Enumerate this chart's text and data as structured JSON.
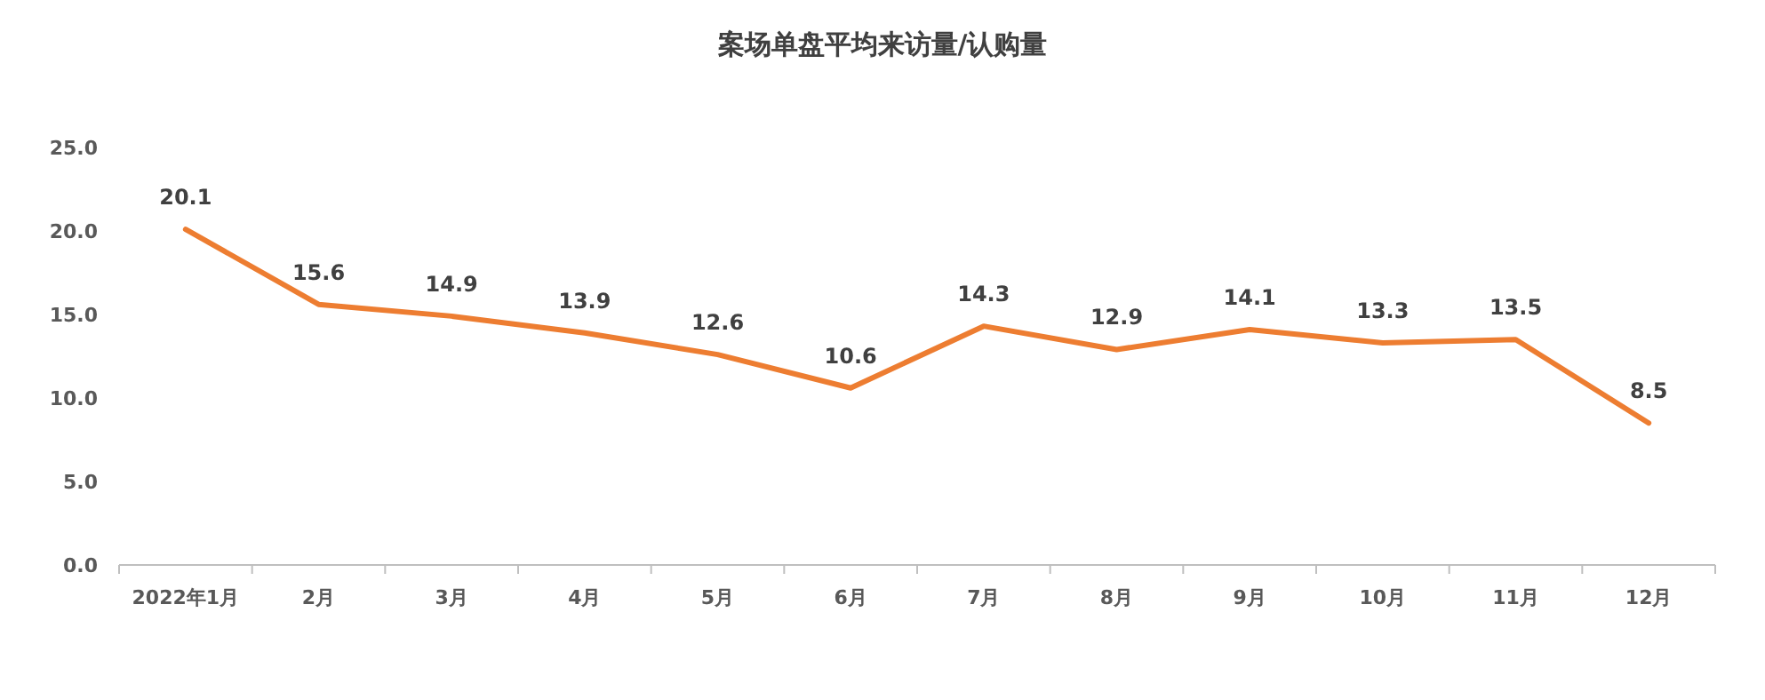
{
  "chart_data": {
    "type": "line",
    "title": "案场单盘平均来访量/认购量",
    "categories": [
      "2022年1月",
      "2月",
      "3月",
      "4月",
      "5月",
      "6月",
      "7月",
      "8月",
      "9月",
      "10月",
      "11月",
      "12月"
    ],
    "values": [
      20.1,
      15.6,
      14.9,
      13.9,
      12.6,
      10.6,
      14.3,
      12.9,
      14.1,
      13.3,
      13.5,
      8.5
    ],
    "color": "#ed7d31",
    "ylim": [
      0,
      25
    ],
    "yticks": [
      {
        "value": 0,
        "label": "0.0"
      },
      {
        "value": 5,
        "label": "5.0"
      },
      {
        "value": 10,
        "label": "10.0"
      },
      {
        "value": 15,
        "label": "15.0"
      },
      {
        "value": 20,
        "label": "20.0"
      },
      {
        "value": 25,
        "label": "25.0"
      }
    ],
    "data_labels": true,
    "grid": false,
    "marker": "none",
    "line_style": "solid"
  }
}
